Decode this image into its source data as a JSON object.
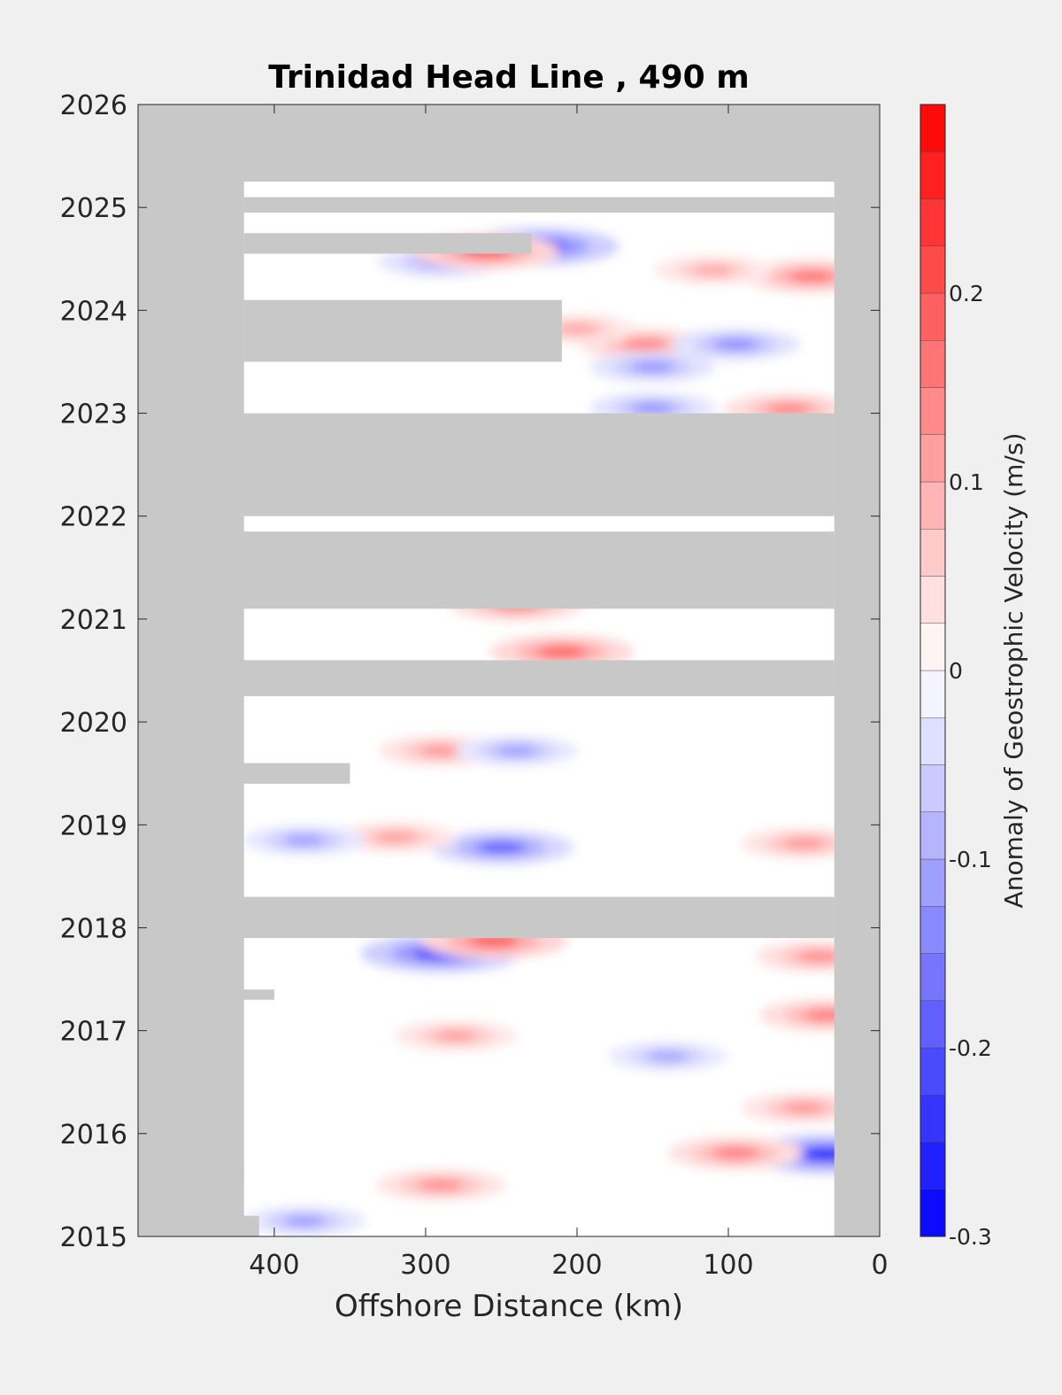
{
  "colors": {
    "background": "#f0f0f0",
    "no_data": "#c8c8c8",
    "positive": "#ff0000",
    "negative": "#0000ff",
    "zero": "#ffffff",
    "axis": "#262626"
  },
  "chart_data": {
    "type": "heatmap",
    "title": "Trinidad Head Line , 490 m",
    "xlabel": "Offshore Distance (km)",
    "ylabel": "",
    "xlim": [
      490,
      0
    ],
    "ylim": [
      2015,
      2026
    ],
    "x_reversed": true,
    "xticks": [
      400,
      300,
      200,
      100,
      0
    ],
    "yticks": [
      2015,
      2016,
      2017,
      2018,
      2019,
      2020,
      2021,
      2022,
      2023,
      2024,
      2025,
      2026
    ],
    "colorbar": {
      "label": "Anomaly of Geostrophic Velocity (m/s)",
      "range": [
        -0.3,
        0.3
      ],
      "levels": 24,
      "ticks": [
        -0.3,
        -0.2,
        -0.1,
        0,
        0.1,
        0.2
      ],
      "tick_labels": [
        "-0.3",
        "-0.2",
        "-0.1",
        "0",
        "0.1",
        "0.2"
      ],
      "colormap": "blue-white-red"
    },
    "no_data_regions": [
      {
        "x": [
          490,
          0
        ],
        "y": [
          2025.25,
          2026
        ]
      },
      {
        "x": [
          490,
          420
        ],
        "y": [
          2015,
          2026
        ]
      },
      {
        "x": [
          30,
          0
        ],
        "y": [
          2015,
          2026
        ]
      },
      {
        "x": [
          490,
          30
        ],
        "y": [
          2022.0,
          2023.0
        ]
      },
      {
        "x": [
          490,
          30
        ],
        "y": [
          2021.1,
          2021.85
        ]
      },
      {
        "x": [
          490,
          30
        ],
        "y": [
          2020.25,
          2020.6
        ]
      },
      {
        "x": [
          490,
          30
        ],
        "y": [
          2017.9,
          2018.3
        ]
      },
      {
        "x": [
          420,
          30
        ],
        "y": [
          2024.95,
          2025.1
        ]
      },
      {
        "x": [
          420,
          230
        ],
        "y": [
          2024.55,
          2024.75
        ]
      },
      {
        "x": [
          420,
          210
        ],
        "y": [
          2023.5,
          2024.1
        ]
      },
      {
        "x": [
          490,
          350
        ],
        "y": [
          2019.4,
          2019.6
        ]
      },
      {
        "x": [
          490,
          440
        ],
        "y": [
          2019.1,
          2019.2
        ]
      },
      {
        "x": [
          490,
          420
        ],
        "y": [
          2015.5,
          2015.7
        ]
      },
      {
        "x": [
          490,
          410
        ],
        "y": [
          2015,
          2015.2
        ]
      },
      {
        "x": [
          490,
          400
        ],
        "y": [
          2017.3,
          2017.4
        ]
      },
      {
        "x": [
          490,
          440
        ],
        "y": [
          2016.8,
          2016.9
        ]
      },
      {
        "x": [
          490,
          450
        ],
        "y": [
          2016.3,
          2016.4
        ]
      }
    ],
    "anomaly_features": [
      {
        "x": 225,
        "y": 2024.62,
        "value": -0.24
      },
      {
        "x": 290,
        "y": 2024.47,
        "value": -0.13
      },
      {
        "x": 260,
        "y": 2024.57,
        "value": 0.2
      },
      {
        "x": 45,
        "y": 2024.33,
        "value": 0.17
      },
      {
        "x": 110,
        "y": 2024.39,
        "value": 0.11
      },
      {
        "x": 155,
        "y": 2023.67,
        "value": 0.15
      },
      {
        "x": 95,
        "y": 2023.67,
        "value": -0.14
      },
      {
        "x": 150,
        "y": 2023.45,
        "value": -0.13
      },
      {
        "x": 200,
        "y": 2023.82,
        "value": 0.11
      },
      {
        "x": 60,
        "y": 2023.04,
        "value": 0.15
      },
      {
        "x": 150,
        "y": 2023.05,
        "value": -0.13
      },
      {
        "x": 240,
        "y": 2021.14,
        "value": 0.16
      },
      {
        "x": 210,
        "y": 2020.68,
        "value": 0.19
      },
      {
        "x": 290,
        "y": 2019.72,
        "value": 0.13
      },
      {
        "x": 240,
        "y": 2019.72,
        "value": -0.12
      },
      {
        "x": 250,
        "y": 2018.78,
        "value": -0.19
      },
      {
        "x": 320,
        "y": 2018.88,
        "value": 0.12
      },
      {
        "x": 50,
        "y": 2018.82,
        "value": 0.13
      },
      {
        "x": 380,
        "y": 2018.85,
        "value": -0.12
      },
      {
        "x": 290,
        "y": 2017.75,
        "value": -0.24
      },
      {
        "x": 255,
        "y": 2017.87,
        "value": 0.2
      },
      {
        "x": 40,
        "y": 2017.72,
        "value": 0.14
      },
      {
        "x": 35,
        "y": 2017.15,
        "value": 0.16
      },
      {
        "x": 280,
        "y": 2016.95,
        "value": 0.12
      },
      {
        "x": 140,
        "y": 2016.75,
        "value": -0.11
      },
      {
        "x": 35,
        "y": 2015.8,
        "value": -0.26
      },
      {
        "x": 95,
        "y": 2015.81,
        "value": 0.16
      },
      {
        "x": 290,
        "y": 2015.5,
        "value": 0.14
      },
      {
        "x": 380,
        "y": 2015.15,
        "value": -0.12
      },
      {
        "x": 50,
        "y": 2016.25,
        "value": 0.13
      }
    ]
  }
}
